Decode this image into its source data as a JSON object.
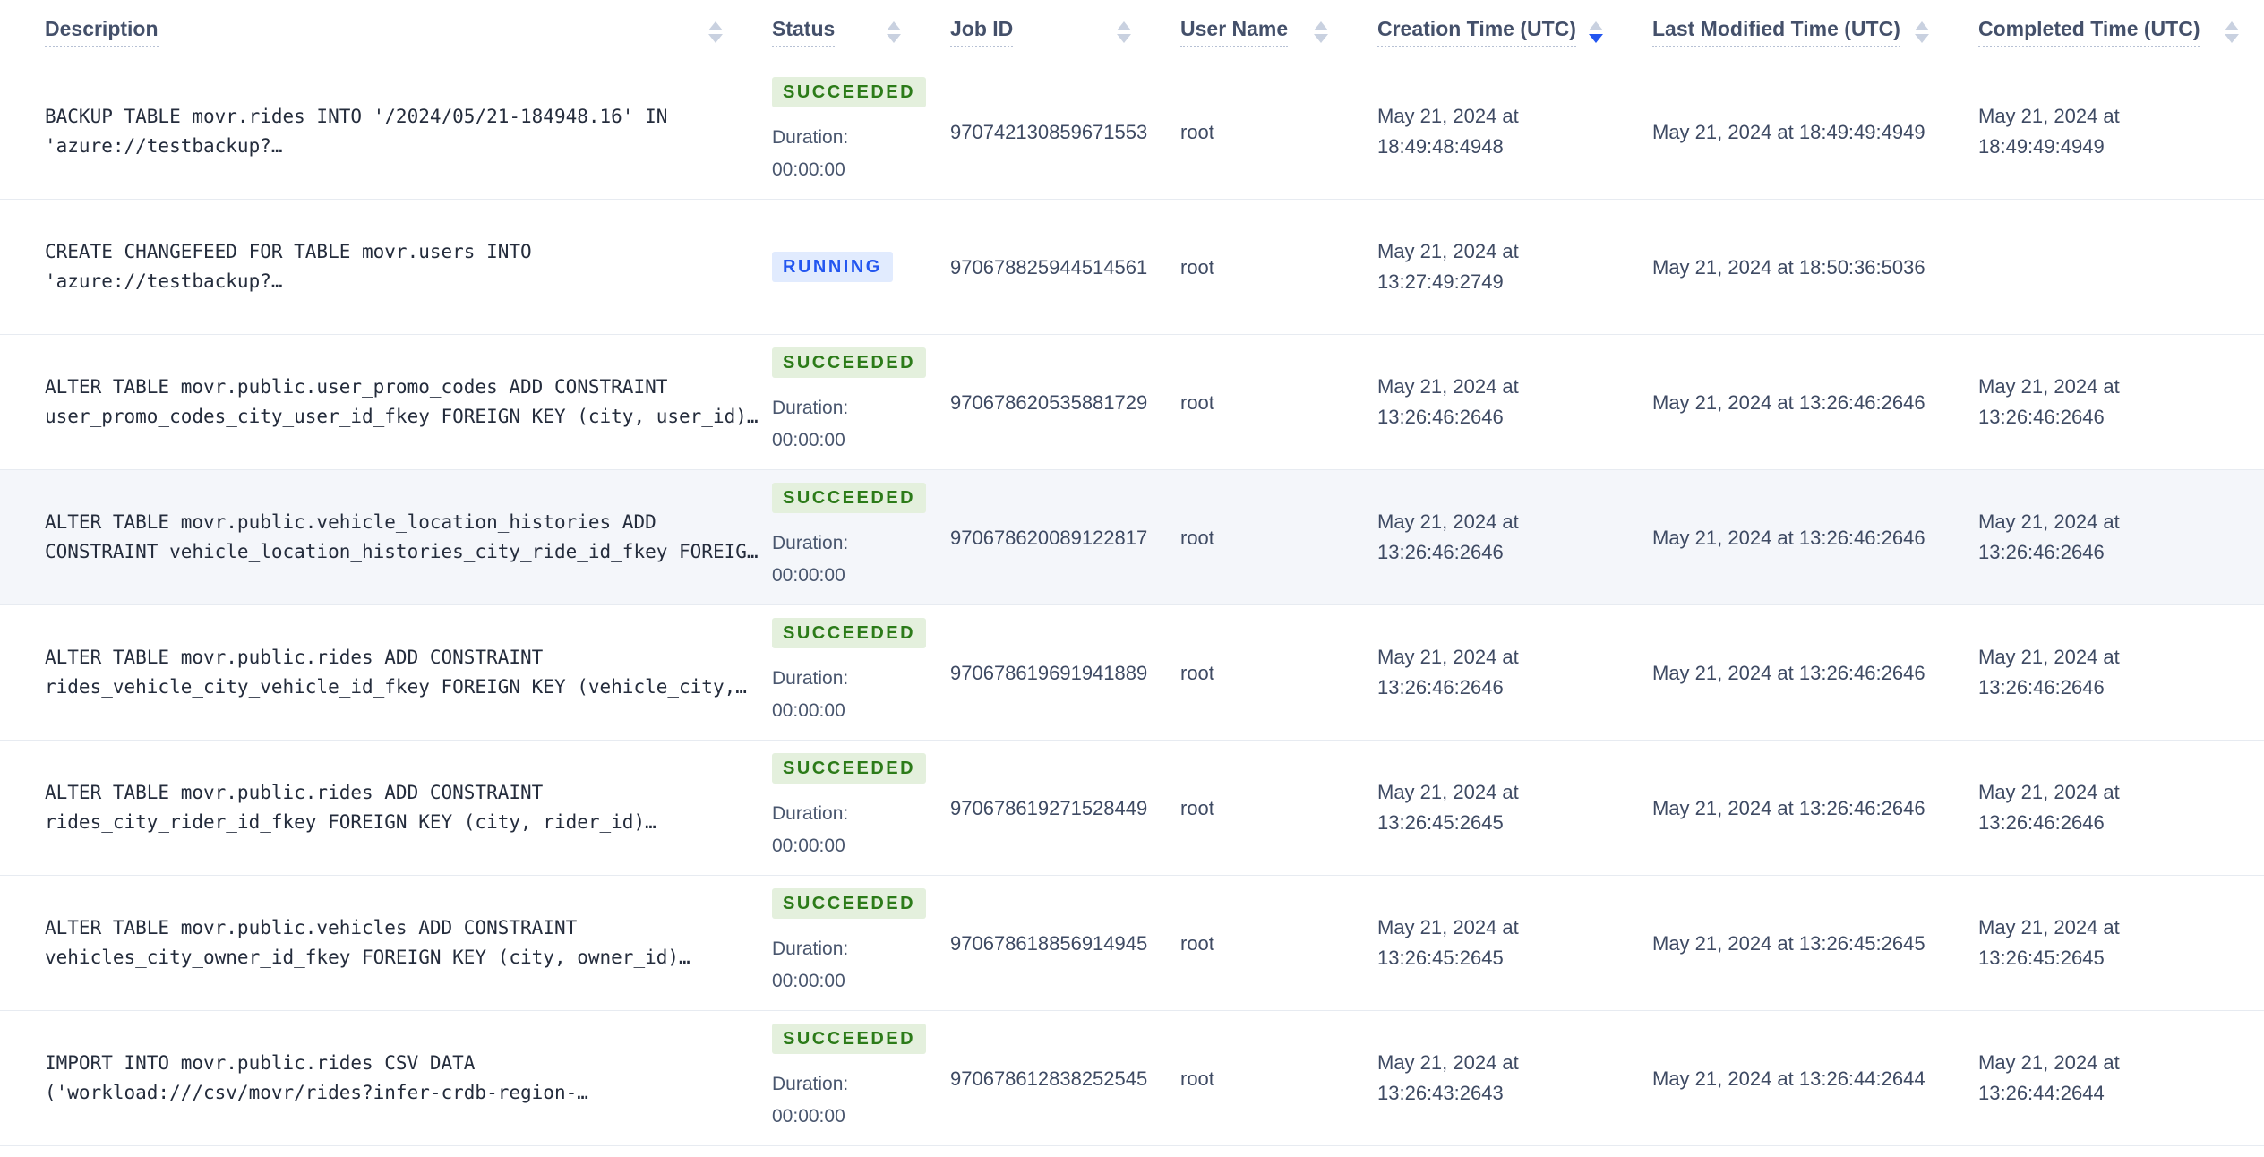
{
  "table": {
    "columns": [
      {
        "label": "Description",
        "sortable": true,
        "sorted": null
      },
      {
        "label": "Status",
        "sortable": true,
        "sorted": null
      },
      {
        "label": "Job ID",
        "sortable": true,
        "sorted": null
      },
      {
        "label": "User Name",
        "sortable": true,
        "sorted": null
      },
      {
        "label": "Creation Time (UTC)",
        "sortable": true,
        "sorted": "desc"
      },
      {
        "label": "Last Modified Time (UTC)",
        "sortable": true,
        "sorted": null
      },
      {
        "label": "Completed Time (UTC)",
        "sortable": true,
        "sorted": null
      }
    ],
    "rows": [
      {
        "description": "BACKUP TABLE movr.rides INTO '/2024/05/21-184948.16' IN 'azure://testbackup?…",
        "status": "SUCCEEDED",
        "duration": "Duration: 00:00:00",
        "job_id": "970742130859671553",
        "user_name": "root",
        "creation_time": "May 21, 2024 at 18:49:48:4948",
        "last_modified_time": "May 21, 2024 at 18:49:49:4949",
        "completed_time": "May 21, 2024 at 18:49:49:4949",
        "highlighted": false
      },
      {
        "description": "CREATE CHANGEFEED FOR TABLE movr.users INTO 'azure://testbackup?…",
        "status": "RUNNING",
        "duration": "",
        "job_id": "970678825944514561",
        "user_name": "root",
        "creation_time": "May 21, 2024 at 13:27:49:2749",
        "last_modified_time": "May 21, 2024 at 18:50:36:5036",
        "completed_time": "",
        "highlighted": false
      },
      {
        "description": "ALTER TABLE movr.public.user_promo_codes ADD CONSTRAINT user_promo_codes_city_user_id_fkey FOREIGN KEY (city, user_id)…",
        "status": "SUCCEEDED",
        "duration": "Duration: 00:00:00",
        "job_id": "970678620535881729",
        "user_name": "root",
        "creation_time": "May 21, 2024 at 13:26:46:2646",
        "last_modified_time": "May 21, 2024 at 13:26:46:2646",
        "completed_time": "May 21, 2024 at 13:26:46:2646",
        "highlighted": false
      },
      {
        "description": "ALTER TABLE movr.public.vehicle_location_histories ADD CONSTRAINT vehicle_location_histories_city_ride_id_fkey FOREIG…",
        "status": "SUCCEEDED",
        "duration": "Duration: 00:00:00",
        "job_id": "970678620089122817",
        "user_name": "root",
        "creation_time": "May 21, 2024 at 13:26:46:2646",
        "last_modified_time": "May 21, 2024 at 13:26:46:2646",
        "completed_time": "May 21, 2024 at 13:26:46:2646",
        "highlighted": true
      },
      {
        "description": "ALTER TABLE movr.public.rides ADD CONSTRAINT rides_vehicle_city_vehicle_id_fkey FOREIGN KEY (vehicle_city,…",
        "status": "SUCCEEDED",
        "duration": "Duration: 00:00:00",
        "job_id": "970678619691941889",
        "user_name": "root",
        "creation_time": "May 21, 2024 at 13:26:46:2646",
        "last_modified_time": "May 21, 2024 at 13:26:46:2646",
        "completed_time": "May 21, 2024 at 13:26:46:2646",
        "highlighted": false
      },
      {
        "description": "ALTER TABLE movr.public.rides ADD CONSTRAINT rides_city_rider_id_fkey FOREIGN KEY (city, rider_id)…",
        "status": "SUCCEEDED",
        "duration": "Duration: 00:00:00",
        "job_id": "970678619271528449",
        "user_name": "root",
        "creation_time": "May 21, 2024 at 13:26:45:2645",
        "last_modified_time": "May 21, 2024 at 13:26:46:2646",
        "completed_time": "May 21, 2024 at 13:26:46:2646",
        "highlighted": false
      },
      {
        "description": "ALTER TABLE movr.public.vehicles ADD CONSTRAINT vehicles_city_owner_id_fkey FOREIGN KEY (city, owner_id)…",
        "status": "SUCCEEDED",
        "duration": "Duration: 00:00:00",
        "job_id": "970678618856914945",
        "user_name": "root",
        "creation_time": "May 21, 2024 at 13:26:45:2645",
        "last_modified_time": "May 21, 2024 at 13:26:45:2645",
        "completed_time": "May 21, 2024 at 13:26:45:2645",
        "highlighted": false
      },
      {
        "description": "IMPORT INTO movr.public.rides CSV DATA ('workload:///csv/movr/rides?infer-crdb-region-…",
        "status": "SUCCEEDED",
        "duration": "Duration: 00:00:00",
        "job_id": "970678612838252545",
        "user_name": "root",
        "creation_time": "May 21, 2024 at 13:26:43:2643",
        "last_modified_time": "May 21, 2024 at 13:26:44:2644",
        "completed_time": "May 21, 2024 at 13:26:44:2644",
        "highlighted": false
      }
    ]
  },
  "colors": {
    "accent_blue": "#2356f0",
    "succeeded_text": "#2c7b19",
    "succeeded_bg": "#e4f0dd",
    "running_text": "#2356f0",
    "running_bg": "#e1ebfe",
    "header_text": "#44506a",
    "body_text": "#3e4a63",
    "mono_text": "#242c3c",
    "row_border": "#e7ebf1",
    "highlight_bg": "#f4f6fa",
    "sort_arrow": "#c9d1e0"
  }
}
